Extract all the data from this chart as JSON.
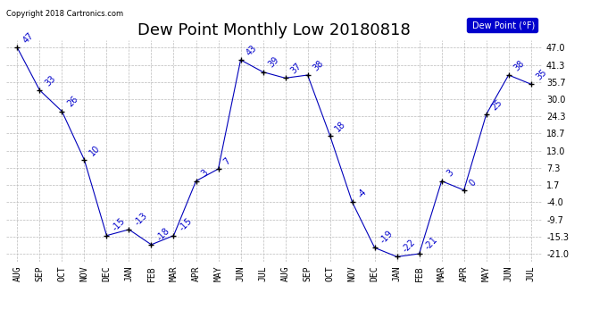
{
  "title": "Dew Point Monthly Low 20180818",
  "copyright": "Copyright 2018 Cartronics.com",
  "legend_label": "Dew Point (°F)",
  "x_labels": [
    "AUG",
    "SEP",
    "OCT",
    "NOV",
    "DEC",
    "JAN",
    "FEB",
    "MAR",
    "APR",
    "MAY",
    "JUN",
    "JUL",
    "AUG",
    "SEP",
    "OCT",
    "NOV",
    "DEC",
    "JAN",
    "FEB",
    "MAR",
    "APR",
    "MAY",
    "JUN",
    "JUL"
  ],
  "y_values": [
    47,
    33,
    26,
    10,
    -15,
    -13,
    -18,
    -15,
    3,
    7,
    43,
    39,
    37,
    38,
    18,
    -4,
    -19,
    -22,
    -21,
    3,
    0,
    25,
    38,
    35
  ],
  "y_ticks": [
    47.0,
    41.3,
    35.7,
    30.0,
    24.3,
    18.7,
    13.0,
    7.3,
    1.7,
    -4.0,
    -9.7,
    -15.3,
    -21.0
  ],
  "ylim": [
    -23.5,
    49.5
  ],
  "line_color": "#0000bb",
  "marker": "+",
  "marker_color": "#000000",
  "label_color": "#0000cc",
  "grid_color": "#bbbbbb",
  "bg_color": "#ffffff",
  "legend_bg": "#0000cc",
  "legend_fg": "#ffffff",
  "title_fontsize": 13,
  "tick_fontsize": 7,
  "label_fontsize": 7,
  "copyright_fontsize": 6
}
